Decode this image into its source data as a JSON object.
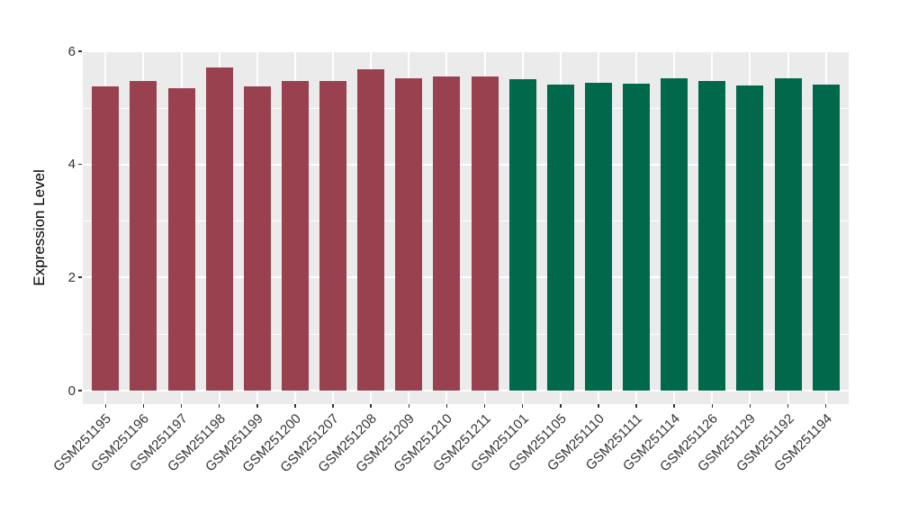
{
  "chart_data": {
    "type": "bar",
    "title": "",
    "xlabel": "",
    "ylabel": "Expression Level",
    "ylim": [
      0,
      6.05
    ],
    "yticks": [
      "0",
      "2",
      "4",
      "6"
    ],
    "ytick_values": [
      0,
      2,
      4,
      6
    ],
    "yminor_values": [
      1,
      3,
      5
    ],
    "grid": true,
    "legend": "none",
    "x_label_rotation_deg": 45,
    "bar_groups": [
      {
        "name": "group-1-red",
        "color": "#9A4150",
        "categories": [
          "GSM251195",
          "GSM251196",
          "GSM251197",
          "GSM251198",
          "GSM251199",
          "GSM251200",
          "GSM251207",
          "GSM251208",
          "GSM251209",
          "GSM251210",
          "GSM251211"
        ],
        "values": [
          5.39,
          5.48,
          5.35,
          5.72,
          5.39,
          5.48,
          5.47,
          5.68,
          5.52,
          5.56,
          5.55
        ]
      },
      {
        "name": "group-2-green",
        "color": "#00694B",
        "categories": [
          "GSM251101",
          "GSM251105",
          "GSM251110",
          "GSM251111",
          "GSM251114",
          "GSM251126",
          "GSM251129",
          "GSM251192",
          "GSM251194"
        ],
        "values": [
          5.51,
          5.41,
          5.45,
          5.43,
          5.52,
          5.48,
          5.4,
          5.53,
          5.41
        ]
      }
    ],
    "colors": {
      "panel_background": "#EBEBEB",
      "gridline": "#FFFFFF",
      "tick": "#333333",
      "tick_label": "#333333",
      "axis_title": "#000000",
      "figure_background": "#FFFFFF"
    }
  }
}
